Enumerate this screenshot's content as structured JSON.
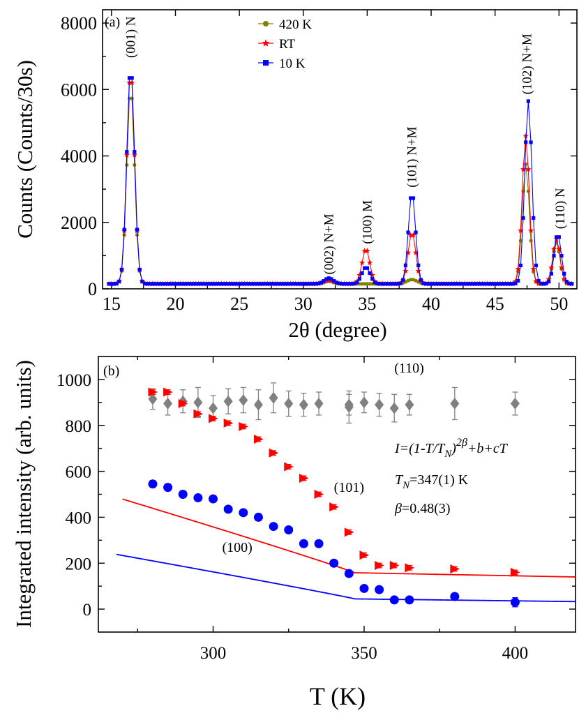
{
  "chart_data": [
    {
      "type": "line",
      "panel": "(a)",
      "xlabel": "2θ (degree)",
      "ylabel": "Counts (Counts/30s)",
      "xlim": [
        14.3,
        51.4
      ],
      "ylim": [
        0,
        8400
      ],
      "xticks": [
        15,
        20,
        25,
        30,
        35,
        40,
        45,
        50
      ],
      "yticks": [
        0,
        2000,
        4000,
        6000,
        8000
      ],
      "baseline": 150,
      "legend_position": "top-center",
      "series": [
        {
          "name": "420 K",
          "color": "#808000",
          "marker": "circle",
          "peaks": [
            [
              16.5,
              5900,
              0.3
            ],
            [
              32.0,
              80,
              0.35
            ],
            [
              34.9,
              0,
              0.35
            ],
            [
              38.5,
              130,
              0.4
            ],
            [
              47.4,
              3600,
              0.28
            ],
            [
              49.8,
              1250,
              0.28
            ]
          ]
        },
        {
          "name": "RT",
          "color": "#ff0000",
          "marker": "star",
          "peaks": [
            [
              16.5,
              6400,
              0.3
            ],
            [
              32.0,
              110,
              0.35
            ],
            [
              34.9,
              1050,
              0.3
            ],
            [
              38.5,
              1550,
              0.3
            ],
            [
              47.4,
              4450,
              0.28
            ],
            [
              49.8,
              1350,
              0.28
            ]
          ]
        },
        {
          "name": "10 K",
          "color": "#0000ff",
          "marker": "square",
          "peaks": [
            [
              16.5,
              6550,
              0.3
            ],
            [
              32.0,
              170,
              0.35
            ],
            [
              34.9,
              500,
              0.32
            ],
            [
              38.5,
              2750,
              0.28
            ],
            [
              47.6,
              5500,
              0.28
            ],
            [
              49.9,
              1500,
              0.28
            ]
          ]
        }
      ],
      "annotations": [
        {
          "text": "(001) N",
          "x": 16.5,
          "y": 6950
        },
        {
          "text": "(002) N+M",
          "x": 32.0,
          "y": 430
        },
        {
          "text": "(100) M",
          "x": 35.0,
          "y": 1350
        },
        {
          "text": "(101) N+M",
          "x": 38.5,
          "y": 3050
        },
        {
          "text": "(102) N+M",
          "x": 47.5,
          "y": 5850
        },
        {
          "text": "(110) N",
          "x": 50.1,
          "y": 1800
        }
      ]
    },
    {
      "type": "scatter",
      "panel": "(b)",
      "xlabel": "T (K)",
      "ylabel": "Integrated intensity (arb. units)",
      "xlim": [
        262,
        420
      ],
      "ylim": [
        -100,
        1100
      ],
      "xticks": [
        300,
        350,
        400
      ],
      "yticks": [
        0,
        200,
        400,
        600,
        800,
        1000
      ],
      "series": [
        {
          "name": "(110)",
          "color": "#808080",
          "marker": "diamond",
          "points": [
            [
              280,
              915,
              45
            ],
            [
              285,
              895,
              50
            ],
            [
              290,
              905,
              50
            ],
            [
              295,
              900,
              65
            ],
            [
              300,
              875,
              55
            ],
            [
              305,
              905,
              55
            ],
            [
              310,
              910,
              55
            ],
            [
              315,
              890,
              65
            ],
            [
              320,
              920,
              65
            ],
            [
              325,
              895,
              55
            ],
            [
              330,
              890,
              50
            ],
            [
              335,
              895,
              50
            ],
            [
              345,
              880,
              70
            ],
            [
              345,
              890,
              45
            ],
            [
              350,
              900,
              45
            ],
            [
              355,
              890,
              50
            ],
            [
              360,
              875,
              60
            ],
            [
              365,
              890,
              45
            ],
            [
              380,
              895,
              70
            ],
            [
              400,
              895,
              50
            ]
          ]
        },
        {
          "name": "(101)",
          "color": "#ff0000",
          "marker": "triangle-right",
          "points": [
            [
              280,
              945,
              10
            ],
            [
              285,
              945,
              10
            ],
            [
              290,
              895,
              10
            ],
            [
              295,
              850,
              10
            ],
            [
              300,
              830,
              10
            ],
            [
              305,
              810,
              10
            ],
            [
              310,
              795,
              10
            ],
            [
              315,
              740,
              10
            ],
            [
              320,
              680,
              10
            ],
            [
              325,
              620,
              10
            ],
            [
              330,
              570,
              10
            ],
            [
              335,
              500,
              10
            ],
            [
              340,
              445,
              10
            ],
            [
              345,
              335,
              10
            ],
            [
              350,
              235,
              10
            ],
            [
              355,
              190,
              10
            ],
            [
              360,
              190,
              10
            ],
            [
              365,
              180,
              10
            ],
            [
              380,
              175,
              10
            ],
            [
              400,
              160,
              10
            ]
          ]
        },
        {
          "name": "(100)",
          "color": "#0000ff",
          "marker": "circle",
          "points": [
            [
              280,
              545,
              15
            ],
            [
              285,
              530,
              15
            ],
            [
              290,
              500,
              15
            ],
            [
              295,
              485,
              10
            ],
            [
              300,
              480,
              10
            ],
            [
              305,
              435,
              10
            ],
            [
              310,
              420,
              10
            ],
            [
              315,
              400,
              15
            ],
            [
              320,
              360,
              10
            ],
            [
              325,
              345,
              10
            ],
            [
              330,
              285,
              10
            ],
            [
              335,
              285,
              10
            ],
            [
              340,
              200,
              10
            ],
            [
              345,
              155,
              10
            ],
            [
              350,
              90,
              10
            ],
            [
              355,
              85,
              10
            ],
            [
              360,
              40,
              10
            ],
            [
              365,
              40,
              10
            ],
            [
              380,
              55,
              10
            ],
            [
              400,
              30,
              20
            ]
          ]
        }
      ],
      "fits": [
        {
          "color": "#ff0000",
          "A": 1280,
          "b": 245,
          "c": -0.25,
          "Tmin": 270,
          "Tmax": 420
        },
        {
          "color": "#0000ff",
          "A": 750,
          "b": 100,
          "c": -0.16,
          "Tmin": 268,
          "Tmax": 420
        }
      ],
      "TN": 347,
      "beta": 0.48,
      "labels": [
        {
          "text": "(110)",
          "x": 360,
          "y": 1030
        },
        {
          "text": "(101)",
          "x": 340,
          "y": 510
        },
        {
          "text": "(100)",
          "x": 303,
          "y": 250
        }
      ],
      "equation": {
        "formula": "I=(1-T/T",
        "sub_N": "N",
        "close_paren": ")",
        "sup": "2β",
        "tail": "+b+cT",
        "tn_label": "T",
        "tn_sub": "N",
        "tn_value": "=347(1) K",
        "beta_label": "β",
        "beta_value": "=0.48(3)"
      }
    }
  ]
}
